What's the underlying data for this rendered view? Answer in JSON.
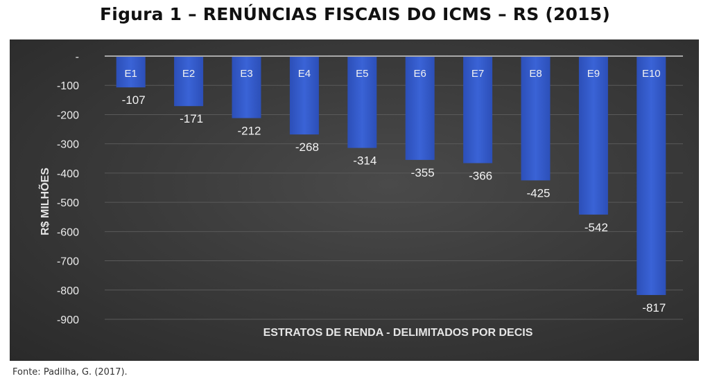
{
  "figure_title": "Figura 1 – RENÚNCIAS FISCAIS DO ICMS – RS (2015)",
  "source": "Fonte: Padilha, G. (2017).",
  "colors": {
    "bar": "#3a63d6",
    "bar_dark": "#2c4fb8",
    "background": "#3b3b3b",
    "text": "#ececec"
  },
  "chart_data": {
    "type": "bar",
    "title": "",
    "xlabel": "ESTRATOS DE RENDA - DELIMITADOS POR DECIS",
    "ylabel": "R$ MILHÕES",
    "categories": [
      "E1",
      "E2",
      "E3",
      "E4",
      "E5",
      "E6",
      "E7",
      "E8",
      "E9",
      "E10"
    ],
    "values": [
      -107,
      -171,
      -212,
      -268,
      -314,
      -355,
      -366,
      -425,
      -542,
      -817
    ],
    "value_labels": [
      "-107",
      "-171",
      "-212",
      "-268",
      "-314",
      "-355",
      "-366",
      "-425",
      "-542",
      "-817"
    ],
    "ylim": [
      -900,
      0
    ],
    "yticks": [
      0,
      -100,
      -200,
      -300,
      -400,
      -500,
      -600,
      -700,
      -800,
      -900
    ],
    "ytick_labels": [
      "-",
      "-100",
      "-200",
      "-300",
      "-400",
      "-500",
      "-600",
      "-700",
      "-800",
      "-900"
    ],
    "grid": true,
    "legend": "none"
  }
}
